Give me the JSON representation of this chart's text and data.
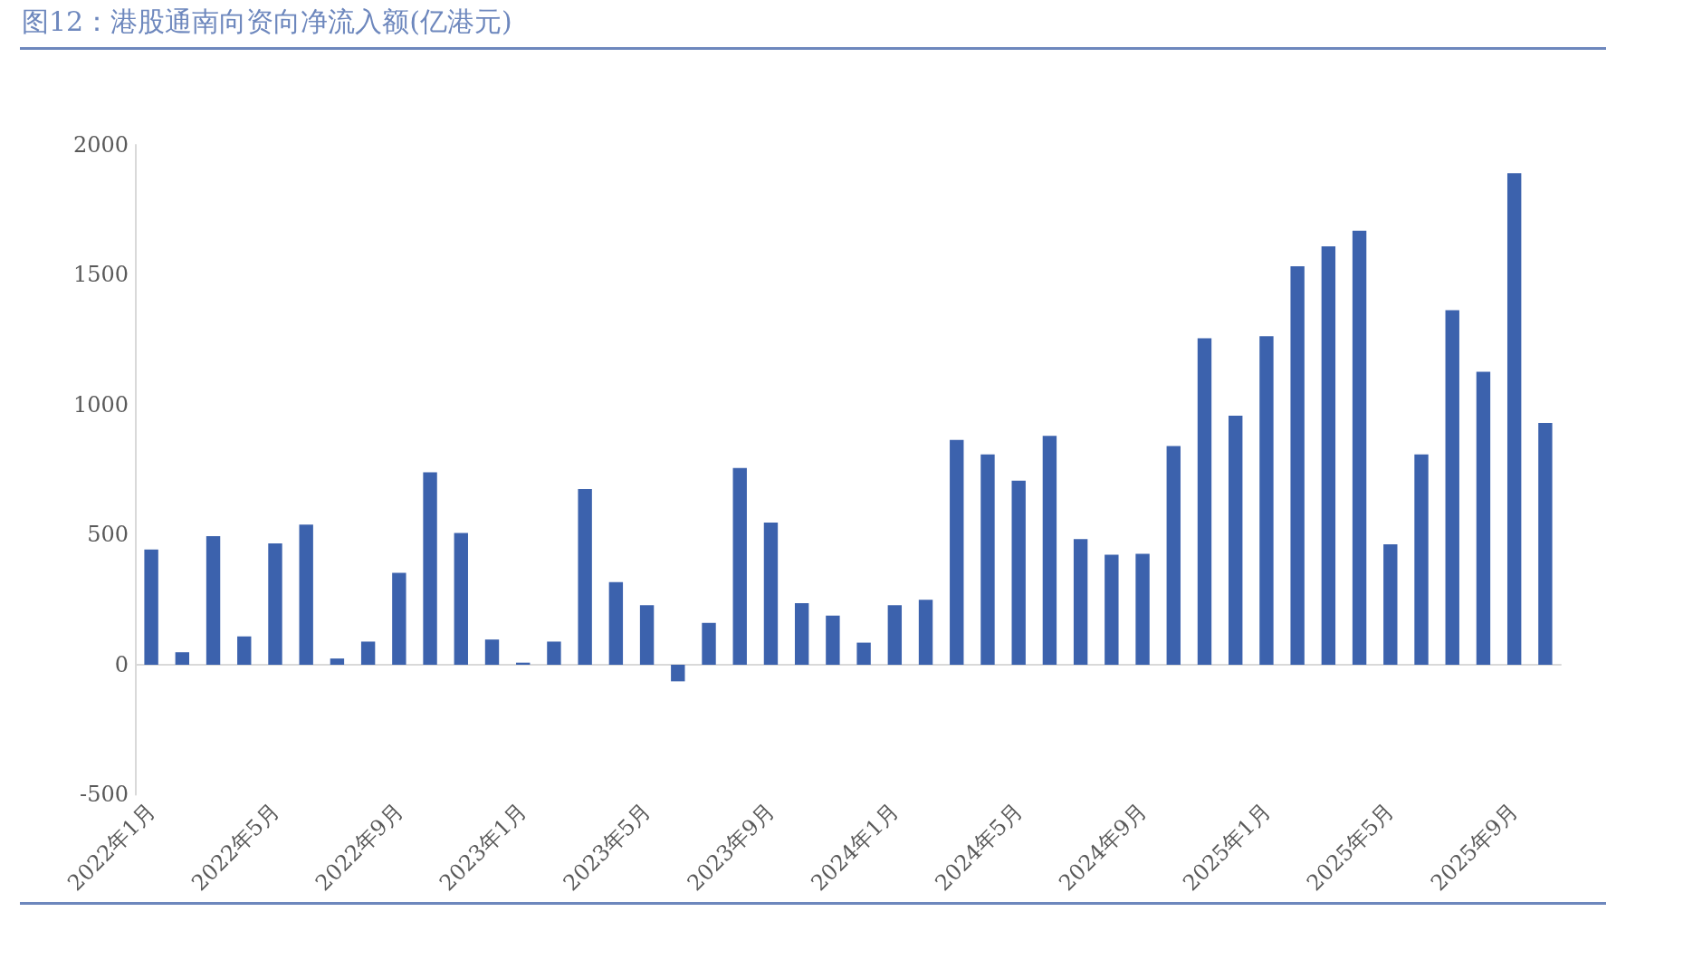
{
  "chart_data": {
    "type": "bar",
    "title": "图12：港股通南向资向净流入额(亿港元)",
    "categories": [
      "2022年1月",
      null,
      null,
      null,
      "2022年5月",
      null,
      null,
      null,
      "2022年9月",
      null,
      null,
      null,
      "2023年1月",
      null,
      null,
      null,
      "2023年5月",
      null,
      null,
      null,
      "2023年9月",
      null,
      null,
      null,
      "2024年1月",
      null,
      null,
      null,
      "2024年5月",
      null,
      null,
      null,
      "2024年9月",
      null,
      null,
      null,
      "2025年1月",
      null,
      null,
      null,
      "2025年5月",
      null,
      null,
      null,
      "2025年9月",
      null
    ],
    "values": [
      443,
      48,
      495,
      109,
      467,
      539,
      24,
      89,
      354,
      740,
      507,
      97,
      8,
      89,
      676,
      318,
      229,
      -64,
      161,
      757,
      547,
      237,
      189,
      85,
      229,
      250,
      865,
      809,
      708,
      881,
      483,
      423,
      427,
      841,
      1256,
      958,
      1264,
      1533,
      1610,
      1670,
      463,
      809,
      1364,
      1127,
      1891,
      930
    ],
    "color": "#3c62ad",
    "ylim": [
      -500,
      2000
    ],
    "yticks": [
      -500,
      0,
      500,
      1000,
      1500,
      2000
    ]
  }
}
